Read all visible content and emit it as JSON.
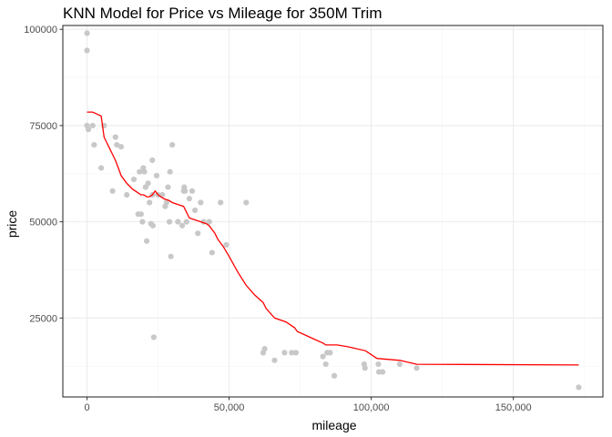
{
  "chart_data": {
    "type": "scatter",
    "title": "KNN Model for Price vs Mileage for 350M Trim",
    "xlabel": "mileage",
    "ylabel": "price",
    "xlim": [
      -8500,
      181500
    ],
    "ylim": [
      4500,
      101000
    ],
    "x_ticks": [
      0,
      50000,
      100000,
      150000
    ],
    "x_tick_labels": [
      "0",
      "50,000",
      "100,000",
      "150,000"
    ],
    "y_ticks": [
      25000,
      50000,
      75000,
      100000
    ],
    "y_tick_labels": [
      "25000",
      "50000",
      "75000",
      "100000"
    ],
    "grid": true,
    "legend": "none",
    "colors": {
      "points": "#c8c8c8",
      "line": "#ff0000",
      "panel_border": "#333333",
      "grid_major": "#ebebeb",
      "grid_minor": "#f5f5f5"
    },
    "series": [
      {
        "kind": "points",
        "x": [
          0,
          0,
          0,
          500,
          2000,
          2500,
          5000,
          6000,
          9000,
          10000,
          10500,
          12000,
          14000,
          16500,
          18000,
          18500,
          19000,
          19500,
          19800,
          20200,
          20600,
          21000,
          21500,
          22000,
          22500,
          23000,
          23000,
          23200,
          23500,
          24500,
          25000,
          26500,
          27500,
          28000,
          28500,
          29000,
          29200,
          29500,
          30000,
          32000,
          33500,
          34000,
          34200,
          34500,
          35000,
          36000,
          37000,
          38000,
          39000,
          40000,
          41000,
          43000,
          44000,
          47000,
          49000,
          56000,
          62000,
          62500,
          66000,
          69500,
          72000,
          73500,
          83000,
          84000,
          84500,
          85500,
          87000,
          97500,
          97800,
          102500,
          102700,
          104000,
          110000,
          116000,
          173000
        ],
        "y": [
          99000,
          94500,
          75000,
          74000,
          75000,
          70000,
          64000,
          75000,
          58000,
          72000,
          70000,
          69500,
          57000,
          61000,
          52000,
          63000,
          52000,
          50000,
          64000,
          63000,
          59000,
          45000,
          60000,
          55000,
          49500,
          57000,
          66000,
          49000,
          20000,
          62000,
          57000,
          57000,
          54000,
          55000,
          59000,
          50000,
          63000,
          41000,
          70000,
          50000,
          49000,
          58000,
          59000,
          58000,
          50000,
          56000,
          58000,
          53000,
          47000,
          55000,
          50000,
          50000,
          42000,
          55000,
          44000,
          55000,
          16000,
          17000,
          14000,
          16000,
          16000,
          16000,
          15000,
          13000,
          16000,
          16000,
          10000,
          13000,
          12000,
          13000,
          11000,
          11000,
          13000,
          12000,
          7000
        ]
      },
      {
        "kind": "line",
        "x": [
          0,
          2000,
          5000,
          6000,
          7000,
          8000,
          9000,
          10000,
          11000,
          12000,
          14000,
          16000,
          17000,
          18000,
          19000,
          20000,
          21000,
          22000,
          23000,
          24000,
          25000,
          27000,
          29000,
          30000,
          32000,
          34000,
          35000,
          36000,
          38000,
          40000,
          42000,
          43000,
          45000,
          46000,
          48000,
          50000,
          53000,
          56000,
          59000,
          62000,
          63000,
          66000,
          70000,
          73000,
          74000,
          77000,
          80000,
          83000,
          84000,
          88000,
          92000,
          98000,
          102000,
          110000,
          116000,
          173000
        ],
        "y": [
          78500,
          78500,
          77500,
          72000,
          70500,
          69000,
          67500,
          66000,
          64000,
          62000,
          60000,
          58500,
          58000,
          57500,
          57000,
          57000,
          56500,
          56500,
          57000,
          58000,
          57000,
          56000,
          55500,
          55000,
          54500,
          54000,
          52500,
          51000,
          50500,
          50000,
          49500,
          49000,
          47000,
          45500,
          43500,
          41000,
          37000,
          33500,
          31000,
          29000,
          27500,
          25000,
          24000,
          22500,
          21500,
          20500,
          19500,
          18500,
          18000,
          18000,
          17500,
          16500,
          14500,
          14000,
          13000,
          12800
        ]
      }
    ]
  }
}
